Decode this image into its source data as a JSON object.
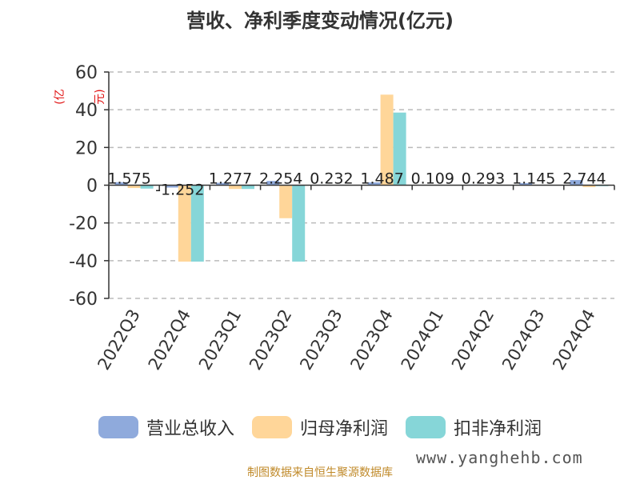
{
  "chart_data": {
    "type": "bar",
    "title": "营收、净利季度变动情况(亿元)",
    "unit_label": "(亿元)",
    "categories": [
      "2022Q3",
      "2022Q4",
      "2023Q1",
      "2023Q2",
      "2023Q3",
      "2023Q4",
      "2024Q1",
      "2024Q2",
      "2024Q3",
      "2024Q4"
    ],
    "ylim": [
      -60,
      60
    ],
    "yticks": [
      "60",
      "40",
      "20",
      "0",
      "-20",
      "-40",
      "-60"
    ],
    "grid": true,
    "legend_position": "bottom",
    "series": [
      {
        "name": "营业总收入",
        "color": "#8faadc",
        "values": [
          1.575,
          -1.252,
          1.277,
          2.254,
          0.232,
          1.487,
          0.109,
          0.293,
          1.145,
          2.744
        ]
      },
      {
        "name": "归母净利润",
        "color": "#ffd699",
        "values": [
          -1.5,
          -40.5,
          -2.0,
          -17.5,
          0.2,
          48.0,
          0.1,
          0.1,
          0.2,
          -1.0
        ]
      },
      {
        "name": "扣非净利润",
        "color": "#86d6d8",
        "values": [
          -1.8,
          -40.5,
          -2.0,
          -40.5,
          0.2,
          38.5,
          0.1,
          0.1,
          0.2,
          -0.5
        ]
      }
    ],
    "data_labels": [
      "1.575",
      "-1.252",
      "1.277",
      "2.254",
      "0.232",
      "1.487",
      "0.109",
      "0.293",
      "1.145",
      "2.744"
    ]
  },
  "source": "制图数据来自恒生聚源数据库",
  "watermark": "www.yanghehb.com"
}
